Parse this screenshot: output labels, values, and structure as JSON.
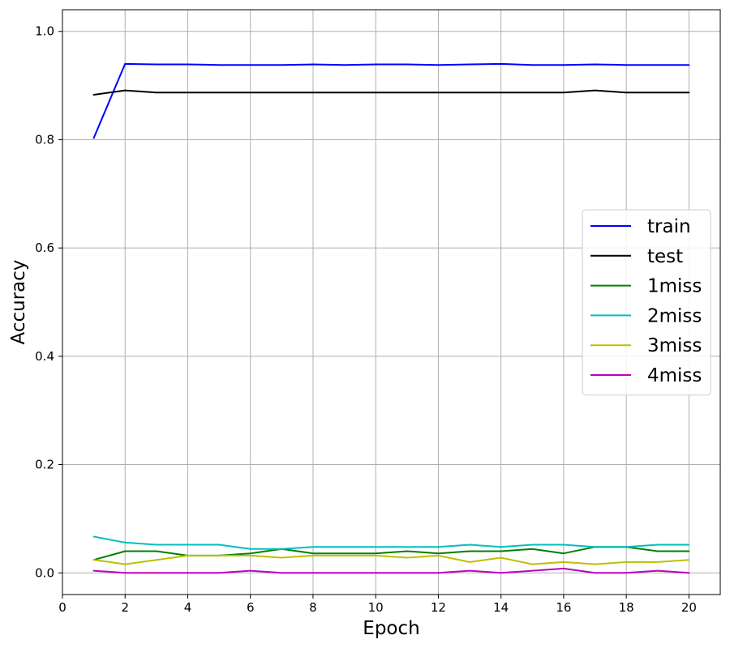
{
  "chart_data": {
    "type": "line",
    "title": "",
    "xlabel": "Epoch",
    "ylabel": "Accuracy",
    "xlim": [
      0,
      21
    ],
    "ylim": [
      -0.04,
      1.04
    ],
    "xticks": [
      0,
      2,
      4,
      6,
      8,
      10,
      12,
      14,
      16,
      18,
      20
    ],
    "yticks": [
      0.0,
      0.2,
      0.4,
      0.6,
      0.8,
      1.0
    ],
    "grid": true,
    "legend_position": "center-right",
    "x": [
      1,
      2,
      3,
      4,
      5,
      6,
      7,
      8,
      9,
      10,
      11,
      12,
      13,
      14,
      15,
      16,
      17,
      18,
      19,
      20
    ],
    "series": [
      {
        "name": "train",
        "color": "#0000ff",
        "values": [
          0.803,
          0.94,
          0.939,
          0.939,
          0.938,
          0.938,
          0.938,
          0.939,
          0.938,
          0.939,
          0.939,
          0.938,
          0.939,
          0.94,
          0.938,
          0.938,
          0.939,
          0.938,
          0.938,
          0.938
        ]
      },
      {
        "name": "test",
        "color": "#000000",
        "values": [
          0.883,
          0.891,
          0.887,
          0.887,
          0.887,
          0.887,
          0.887,
          0.887,
          0.887,
          0.887,
          0.887,
          0.887,
          0.887,
          0.887,
          0.887,
          0.887,
          0.891,
          0.887,
          0.887,
          0.887
        ]
      },
      {
        "name": "1miss",
        "color": "#008000",
        "values": [
          0.024,
          0.04,
          0.04,
          0.032,
          0.032,
          0.036,
          0.044,
          0.036,
          0.036,
          0.036,
          0.04,
          0.036,
          0.04,
          0.04,
          0.044,
          0.036,
          0.048,
          0.048,
          0.04,
          0.04
        ]
      },
      {
        "name": "2miss",
        "color": "#00bfbf",
        "values": [
          0.067,
          0.056,
          0.052,
          0.052,
          0.052,
          0.044,
          0.044,
          0.048,
          0.048,
          0.048,
          0.048,
          0.048,
          0.052,
          0.048,
          0.052,
          0.052,
          0.048,
          0.048,
          0.052,
          0.052
        ]
      },
      {
        "name": "3miss",
        "color": "#bfbf00",
        "values": [
          0.024,
          0.016,
          0.024,
          0.032,
          0.032,
          0.032,
          0.028,
          0.032,
          0.032,
          0.032,
          0.028,
          0.032,
          0.02,
          0.028,
          0.016,
          0.02,
          0.016,
          0.02,
          0.02,
          0.024
        ]
      },
      {
        "name": "4miss",
        "color": "#bf00bf",
        "values": [
          0.004,
          0.0,
          0.0,
          0.0,
          0.0,
          0.004,
          0.0,
          0.0,
          0.0,
          0.0,
          0.0,
          0.0,
          0.004,
          0.0,
          0.004,
          0.008,
          0.0,
          0.0,
          0.004,
          0.0
        ]
      }
    ]
  }
}
